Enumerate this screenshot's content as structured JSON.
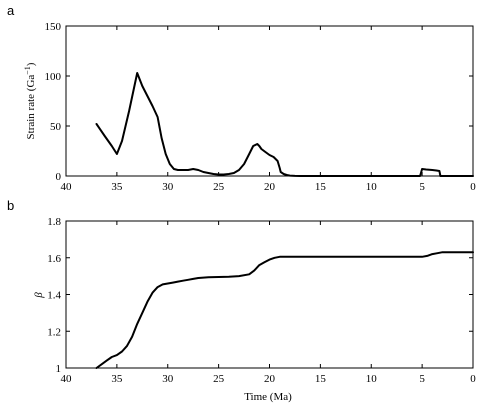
{
  "chart_data": [
    {
      "type": "line",
      "panel_label": "a",
      "ylabel": "Strain rate (Ga",
      "ylabel_sup": "−1",
      "ylabel_close": ")",
      "xlabel": "",
      "xlim": [
        40,
        0
      ],
      "ylim": [
        0,
        150
      ],
      "x_reversed": true,
      "xticks": [
        40,
        35,
        30,
        25,
        20,
        15,
        10,
        5,
        0
      ],
      "yticks": [
        0,
        50,
        100,
        150
      ],
      "tick_labels_x": [
        "40",
        "35",
        "30",
        "25",
        "20",
        "15",
        "10",
        "5",
        "0"
      ],
      "tick_labels_y": [
        "0",
        "50",
        "100",
        "150"
      ],
      "grid": false,
      "series": [
        {
          "x": [
            37,
            36.2,
            35.5,
            35,
            34.5,
            33.8,
            33,
            32.5,
            32,
            31.5,
            31,
            30.6,
            30.2,
            29.8,
            29.4,
            29,
            28.5,
            28,
            27.5,
            27,
            26.5,
            26,
            25.5,
            25,
            24.5,
            24,
            23.5,
            23,
            22.5,
            22,
            21.6,
            21.2,
            21,
            20.8,
            20.4,
            20,
            19.6,
            19.2,
            19,
            18.9,
            18.6,
            18.3,
            18,
            17.5,
            17,
            16,
            10,
            5.2,
            5,
            4.6,
            4,
            3.6,
            3.3,
            3.2,
            3,
            2.5,
            0
          ],
          "y": [
            52,
            40,
            30,
            22,
            35,
            65,
            103,
            90,
            80,
            70,
            59,
            38,
            22,
            12,
            7,
            6,
            6,
            6,
            7,
            6,
            4,
            3,
            2,
            1.5,
            1.5,
            2,
            3,
            6,
            12,
            22,
            30,
            32,
            30,
            27,
            24,
            21,
            19,
            15,
            8,
            4,
            2,
            1,
            0.4,
            0.1,
            0,
            0,
            0,
            0,
            7,
            6.5,
            6,
            5.5,
            5,
            0,
            0,
            0,
            0
          ]
        }
      ]
    },
    {
      "type": "line",
      "panel_label": "b",
      "ylabel": "β",
      "xlabel": "Time (Ma)",
      "xlim": [
        40,
        0
      ],
      "ylim": [
        1,
        1.8
      ],
      "x_reversed": true,
      "xticks": [
        40,
        35,
        30,
        25,
        20,
        15,
        10,
        5,
        0
      ],
      "yticks": [
        1,
        1.2,
        1.4,
        1.6,
        1.8
      ],
      "tick_labels_x": [
        "40",
        "35",
        "30",
        "25",
        "20",
        "15",
        "10",
        "5",
        "0"
      ],
      "tick_labels_y": [
        "1",
        "1.2",
        "1.4",
        "1.6",
        "1.8"
      ],
      "grid": false,
      "series": [
        {
          "x": [
            37,
            36.5,
            36,
            35.5,
            35,
            34.5,
            34,
            33.5,
            33,
            32.5,
            32,
            31.5,
            31,
            30.5,
            30,
            29.5,
            29,
            28.5,
            28,
            27.5,
            27,
            26.5,
            26,
            25,
            24,
            23,
            22,
            21.5,
            21,
            20.5,
            20,
            19.5,
            19,
            18,
            15,
            10,
            5,
            4.5,
            4,
            3.5,
            3,
            2,
            1,
            0
          ],
          "y": [
            1.0,
            1.02,
            1.04,
            1.06,
            1.07,
            1.09,
            1.12,
            1.17,
            1.24,
            1.3,
            1.36,
            1.41,
            1.44,
            1.455,
            1.46,
            1.465,
            1.47,
            1.475,
            1.48,
            1.485,
            1.49,
            1.492,
            1.494,
            1.495,
            1.497,
            1.5,
            1.51,
            1.53,
            1.56,
            1.575,
            1.59,
            1.6,
            1.605,
            1.605,
            1.605,
            1.605,
            1.605,
            1.61,
            1.62,
            1.625,
            1.63,
            1.63,
            1.63,
            1.63
          ]
        }
      ]
    }
  ]
}
